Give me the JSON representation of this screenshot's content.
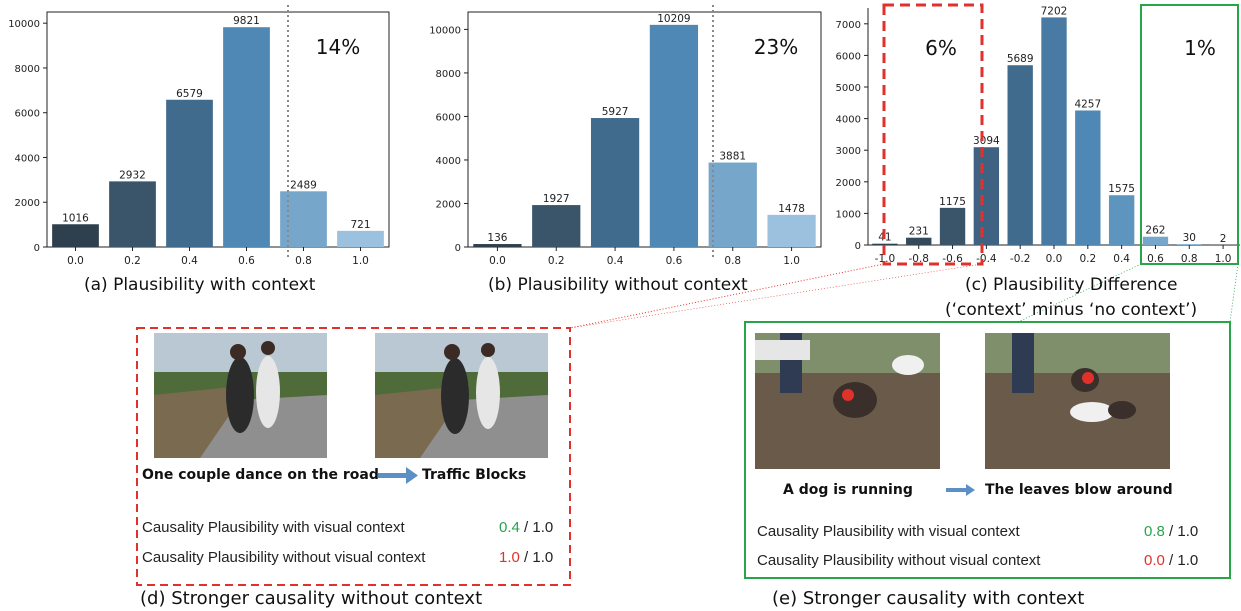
{
  "colors": {
    "dark1": "#2e3f4d",
    "dark2": "#3a5569",
    "mid1": "#416b8d",
    "mid2": "#4f88b4",
    "light1": "#76a6c9",
    "light2": "#9bc1de",
    "red": "#e0322b",
    "green": "#27a548",
    "gray_line": "#888888"
  },
  "chart_data": [
    {
      "type": "bar",
      "categories": [
        "0.0",
        "0.2",
        "0.4",
        "0.6",
        "0.8",
        "1.0"
      ],
      "values": [
        1016,
        2932,
        6579,
        9821,
        2489,
        721
      ],
      "value_labels": [
        "1016",
        "2932",
        "6579",
        "9821",
        "2489",
        "721"
      ],
      "yticks": [
        "0",
        "2000",
        "4000",
        "6000",
        "8000",
        "10000"
      ],
      "ylim": [
        0,
        10500
      ],
      "annotation": "14%",
      "caption": "(a) Plausibility with context"
    },
    {
      "type": "bar",
      "categories": [
        "0.0",
        "0.2",
        "0.4",
        "0.6",
        "0.8",
        "1.0"
      ],
      "values": [
        136,
        1927,
        5927,
        10209,
        3881,
        1478
      ],
      "value_labels": [
        "136",
        "1927",
        "5927",
        "10209",
        "3881",
        "1478"
      ],
      "yticks": [
        "0",
        "2000",
        "4000",
        "6000",
        "8000",
        "10000"
      ],
      "ylim": [
        0,
        10800
      ],
      "annotation": "23%",
      "caption": "(b) Plausibility without context"
    },
    {
      "type": "bar",
      "categories": [
        "-1.0",
        "-0.8",
        "-0.6",
        "-0.4",
        "-0.2",
        "0.0",
        "0.2",
        "0.4",
        "0.6",
        "0.8",
        "1.0"
      ],
      "values": [
        41,
        231,
        1175,
        3094,
        5689,
        7202,
        4257,
        1575,
        262,
        30,
        2
      ],
      "value_labels": [
        "41",
        "231",
        "1175",
        "3094",
        "5689",
        "7202",
        "4257",
        "1575",
        "262",
        "30",
        "2"
      ],
      "yticks": [
        "0",
        "1000",
        "2000",
        "3000",
        "4000",
        "5000",
        "6000",
        "7000"
      ],
      "ylim": [
        0,
        7500
      ],
      "annotation_left": "6%",
      "annotation_right": "1%",
      "caption_line1": "(c) Plausibility Difference",
      "caption_line2": "(‘context’ minus ‘no context’)"
    }
  ],
  "panel_d": {
    "caption_left": "One couple dance on the road",
    "caption_right": "Traffic Blocks",
    "row1_label": "Causality Plausibility with visual context",
    "row1_score": "0.4",
    "row2_label": "Causality Plausibility without visual context",
    "row2_score": "1.0",
    "score_max": "/ 1.0",
    "title": "(d) Stronger causality without context"
  },
  "panel_e": {
    "caption_left": "A dog is running",
    "caption_right": "The leaves blow around",
    "row1_label": "Causality Plausibility with visual context",
    "row1_score": "0.8",
    "row2_label": "Causality Plausibility without visual context",
    "row2_score": "0.0",
    "score_max": "/ 1.0",
    "title": "(e) Stronger causality with context"
  }
}
